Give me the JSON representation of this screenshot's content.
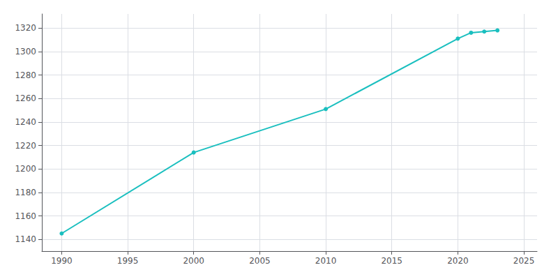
{
  "chart_data": {
    "type": "line",
    "x": [
      1990,
      2000,
      2010,
      2020,
      2021,
      2022,
      2023
    ],
    "values": [
      1145,
      1214,
      1251,
      1311,
      1316,
      1317,
      1318
    ],
    "color": "#1abfbf",
    "marker": "circle",
    "xlim": [
      1988.5,
      2026
    ],
    "ylim": [
      1130,
      1332
    ],
    "xticks": [
      1990,
      1995,
      2000,
      2005,
      2010,
      2015,
      2020,
      2025
    ],
    "yticks": [
      1140,
      1160,
      1180,
      1200,
      1220,
      1240,
      1260,
      1280,
      1300,
      1320
    ],
    "grid": true
  }
}
